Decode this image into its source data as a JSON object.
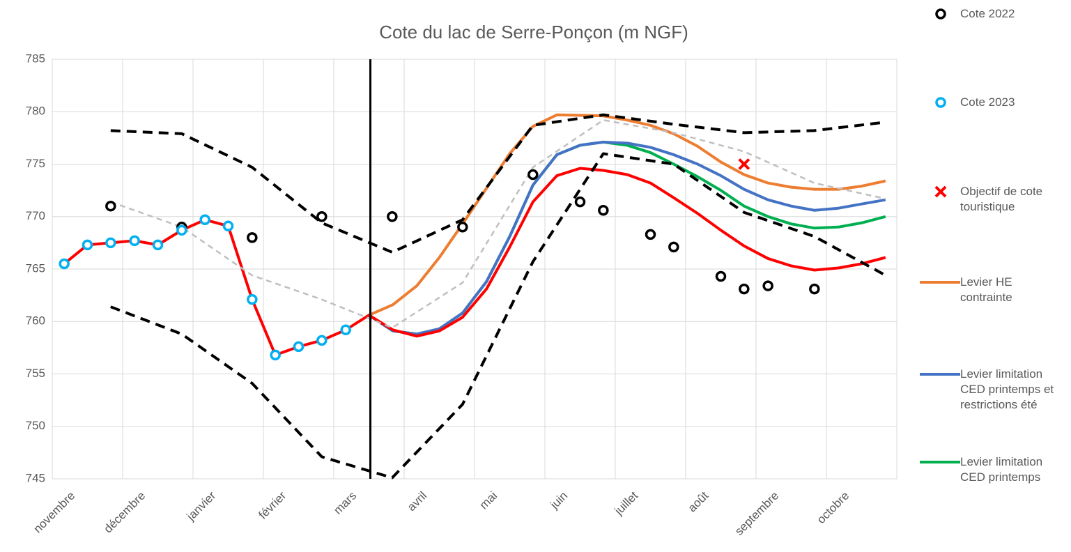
{
  "chart_data": {
    "type": "line",
    "title": "Cote du lac de Serre-Ponçon (m NGF)",
    "xlim": [
      0,
      12
    ],
    "xticks": [
      {
        "value": 0,
        "label": "novembre"
      },
      {
        "value": 1,
        "label": "décembre"
      },
      {
        "value": 2,
        "label": "janvier"
      },
      {
        "value": 3,
        "label": "février"
      },
      {
        "value": 4,
        "label": "mars"
      },
      {
        "value": 5,
        "label": "avril"
      },
      {
        "value": 6,
        "label": "mai"
      },
      {
        "value": 7,
        "label": "juin"
      },
      {
        "value": 8,
        "label": "juillet"
      },
      {
        "value": 9,
        "label": "août"
      },
      {
        "value": 10,
        "label": "septembre"
      },
      {
        "value": 11,
        "label": "octobre"
      }
    ],
    "ylim": [
      745,
      785
    ],
    "yticks": [
      745,
      750,
      755,
      760,
      765,
      770,
      775,
      780,
      785
    ],
    "grid": true,
    "vline": 4.52,
    "series": [
      {
        "name": "Cote 2022",
        "color": "#000000",
        "marker": "circle",
        "x": [
          0.83,
          1.84,
          2.84,
          3.83,
          4.83,
          5.83,
          6.83,
          7.5,
          7.83,
          8.5,
          8.83,
          9.5,
          9.83,
          10.17,
          10.83
        ],
        "values": [
          771.0,
          769.0,
          768.0,
          770.0,
          770.0,
          769.0,
          774.0,
          771.4,
          770.6,
          768.3,
          767.1,
          764.3,
          763.1,
          763.4,
          763.1
        ]
      },
      {
        "name": "Cote 2023",
        "color": "#00b0f0",
        "marker": "circle",
        "x": [
          0.17,
          0.5,
          0.83,
          1.17,
          1.5,
          1.84,
          2.17,
          2.5,
          2.84,
          3.17,
          3.5,
          3.83,
          4.17
        ],
        "values": [
          765.5,
          767.3,
          767.5,
          767.7,
          767.3,
          768.7,
          769.7,
          769.1,
          762.1,
          756.8,
          757.6,
          758.2,
          759.2
        ]
      },
      {
        "name": "Objectif de cote touristique",
        "color": "#ff0000",
        "marker": "x",
        "x": [
          9.83
        ],
        "values": [
          775.0
        ]
      },
      {
        "name": "Levier HE contrainte",
        "color": "#ed7d31",
        "x": [
          4.5,
          4.84,
          5.18,
          5.5,
          5.83,
          6.17,
          6.5,
          6.83,
          7.17,
          7.83,
          8.17,
          8.5,
          8.83,
          9.17,
          9.5,
          9.83,
          10.17,
          10.5,
          10.83,
          11.17,
          11.5,
          11.84
        ],
        "values": [
          760.6,
          761.6,
          763.4,
          766.1,
          769.3,
          772.7,
          776.0,
          778.6,
          779.7,
          779.6,
          779.2,
          778.7,
          777.9,
          776.7,
          775.2,
          774.0,
          773.2,
          772.8,
          772.6,
          772.6,
          772.9,
          773.4
        ]
      },
      {
        "name": "Levier limitation CED printemps et restrictions été",
        "color": "#4472c4",
        "x": [
          4.5,
          4.84,
          5.18,
          5.5,
          5.83,
          6.17,
          6.5,
          6.83,
          7.17,
          7.5,
          7.83,
          8.17,
          8.5,
          8.83,
          9.17,
          9.5,
          9.83,
          10.17,
          10.5,
          10.83,
          11.17,
          11.5,
          11.84
        ],
        "values": [
          760.6,
          759.1,
          758.8,
          759.3,
          760.8,
          763.8,
          768.1,
          773.0,
          775.9,
          776.8,
          777.1,
          777.0,
          776.6,
          775.9,
          775.0,
          773.9,
          772.6,
          771.6,
          771.0,
          770.6,
          770.8,
          771.2,
          771.6
        ]
      },
      {
        "name": "Levier limitation CED printemps",
        "color": "#00b050",
        "x": [
          4.5,
          4.84,
          5.18,
          5.5,
          5.83,
          6.17,
          6.5,
          6.83,
          7.17,
          7.5,
          7.83,
          8.17,
          8.5,
          8.83,
          9.17,
          9.5,
          9.83,
          10.17,
          10.5,
          10.83,
          11.17,
          11.5,
          11.84
        ],
        "values": [
          760.6,
          759.1,
          758.8,
          759.3,
          760.8,
          763.8,
          768.1,
          773.0,
          775.9,
          776.8,
          777.1,
          776.8,
          776.1,
          775.0,
          773.8,
          772.5,
          771.0,
          770.0,
          769.3,
          768.9,
          769.0,
          769.4,
          770.0
        ]
      },
      {
        "color": "#ff0000",
        "x": [
          0.17,
          0.5,
          0.83,
          1.17,
          1.5,
          1.84,
          2.17,
          2.5,
          2.84,
          3.17,
          3.5,
          3.83,
          4.17,
          4.5,
          4.84,
          5.18,
          5.5,
          5.83,
          6.17,
          6.5,
          6.83,
          7.17,
          7.5,
          7.83,
          8.17,
          8.5,
          8.83,
          9.17,
          9.5,
          9.83,
          10.17,
          10.5,
          10.83,
          11.17,
          11.5,
          11.84
        ],
        "values": [
          765.5,
          767.3,
          767.5,
          767.7,
          767.3,
          768.7,
          769.7,
          769.1,
          762.1,
          756.8,
          757.6,
          758.2,
          759.2,
          760.6,
          759.2,
          758.6,
          759.1,
          760.4,
          763.1,
          767.1,
          771.4,
          773.9,
          774.6,
          774.4,
          774.0,
          773.2,
          771.8,
          770.3,
          768.7,
          767.2,
          766.0,
          765.3,
          764.9,
          765.1,
          765.5,
          766.1
        ]
      },
      {
        "color": "#000000",
        "dash": true,
        "x": [
          0.83,
          1.84,
          2.84,
          3.83,
          4.83,
          5.83,
          6.83,
          7.83,
          8.83,
          9.83,
          10.83,
          11.84
        ],
        "values": [
          778.2,
          777.9,
          774.7,
          769.4,
          766.6,
          769.7,
          778.7,
          779.7,
          778.8,
          778.0,
          778.2,
          779.0
        ]
      },
      {
        "color": "#000000",
        "dash": true,
        "x": [
          0.83,
          1.84,
          2.84,
          3.83,
          4.83,
          5.83,
          6.83,
          7.83,
          8.83,
          9.83,
          10.83,
          11.84
        ],
        "values": [
          761.4,
          758.8,
          754.1,
          747.1,
          745.1,
          752.1,
          765.7,
          776.0,
          775.0,
          770.4,
          768.1,
          764.4
        ]
      },
      {
        "color": "#bfbfbf",
        "dash": true,
        "thin": true,
        "x": [
          0.83,
          1.84,
          2.84,
          3.83,
          4.83,
          5.83,
          6.83,
          7.83,
          8.83,
          9.83,
          10.83,
          11.84
        ],
        "values": [
          771.4,
          769.0,
          764.4,
          762.1,
          759.4,
          763.7,
          774.7,
          779.2,
          778.0,
          776.2,
          773.2,
          771.7
        ]
      }
    ]
  }
}
